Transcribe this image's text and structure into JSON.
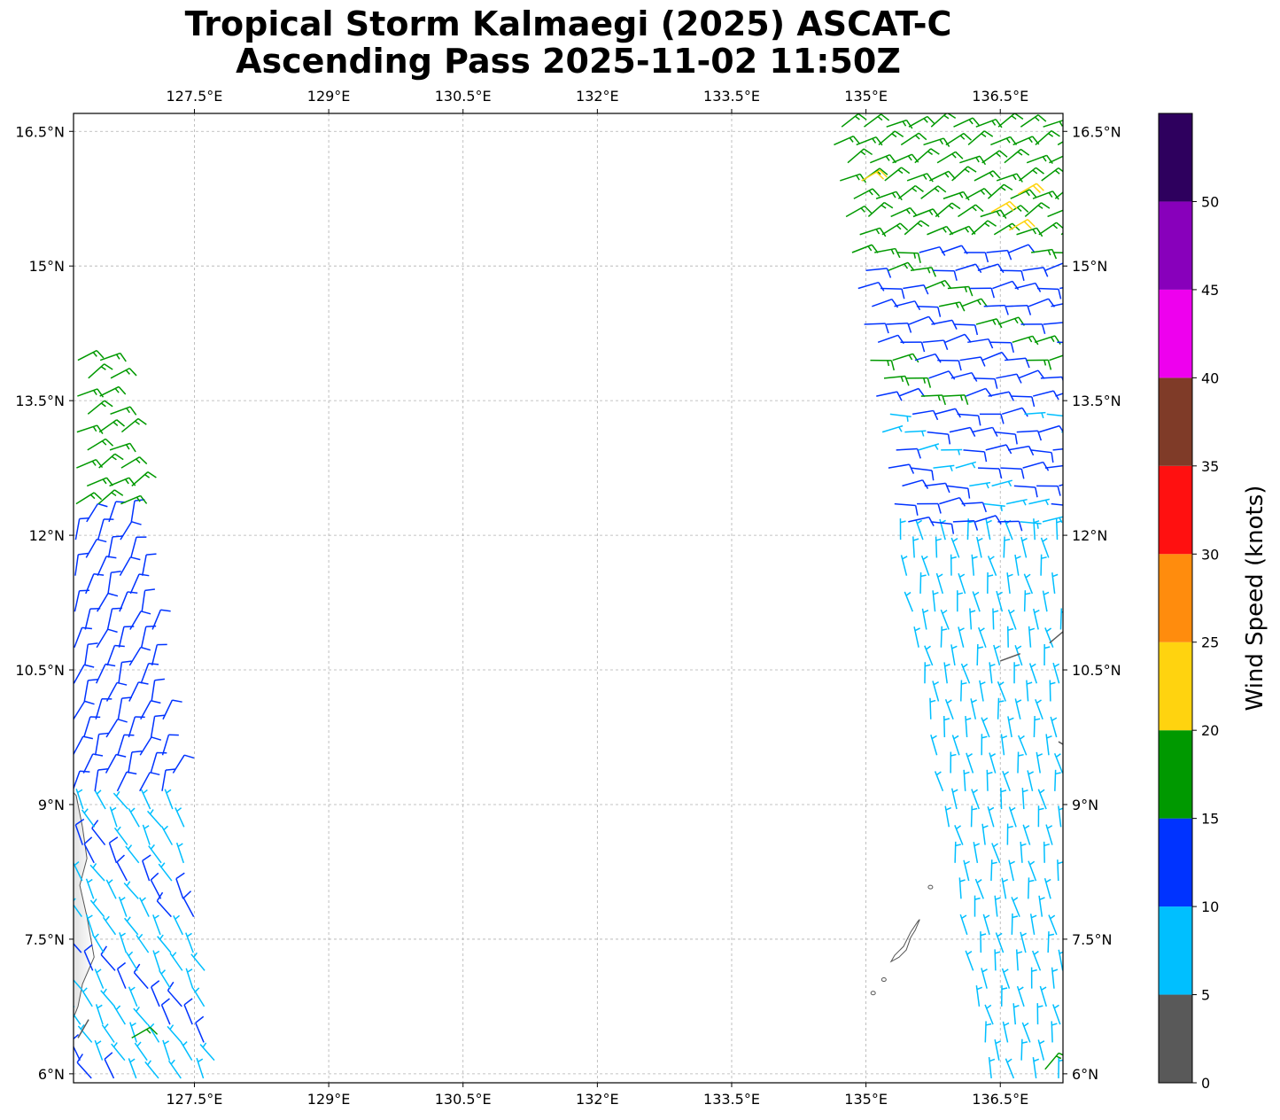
{
  "title": {
    "line1": "Tropical Storm Kalmaegi (2025) ASCAT-C",
    "line2": "Ascending Pass 2025-11-02 11:50Z"
  },
  "map": {
    "lon_range": [
      126.15,
      137.2
    ],
    "lat_range": [
      5.9,
      16.7
    ],
    "lon_ticks": [
      "127.5°E",
      "129°E",
      "130.5°E",
      "132°E",
      "133.5°E",
      "135°E",
      "136.5°E"
    ],
    "lon_tick_values": [
      127.5,
      129,
      130.5,
      132,
      133.5,
      135,
      136.5
    ],
    "lat_ticks": [
      "16.5°N",
      "15°N",
      "13.5°N",
      "12°N",
      "10.5°N",
      "9°N",
      "7.5°N",
      "6°N"
    ],
    "lat_tick_values": [
      16.5,
      15,
      13.5,
      12,
      10.5,
      9,
      7.5,
      6
    ],
    "gridlines": "dashed gray",
    "land_features": [
      "mindanao-coast",
      "palau-islands"
    ]
  },
  "colorbar": {
    "label": "Wind Speed (knots)",
    "tick_labels": [
      "0",
      "5",
      "10",
      "15",
      "20",
      "25",
      "30",
      "35",
      "40",
      "45",
      "50"
    ],
    "tick_values": [
      0,
      5,
      10,
      15,
      20,
      25,
      30,
      35,
      40,
      45,
      50
    ],
    "range": [
      0,
      55
    ],
    "bins": [
      {
        "from": 0,
        "to": 5,
        "color": "#595959"
      },
      {
        "from": 5,
        "to": 10,
        "color": "#00bfff"
      },
      {
        "from": 10,
        "to": 15,
        "color": "#0033ff"
      },
      {
        "from": 15,
        "to": 20,
        "color": "#009900"
      },
      {
        "from": 20,
        "to": 25,
        "color": "#ffd30f"
      },
      {
        "from": 25,
        "to": 30,
        "color": "#ff8c0d"
      },
      {
        "from": 30,
        "to": 35,
        "color": "#ff1010"
      },
      {
        "from": 35,
        "to": 40,
        "color": "#7f3b28"
      },
      {
        "from": 40,
        "to": 45,
        "color": "#ee00ee"
      },
      {
        "from": 45,
        "to": 50,
        "color": "#8800bb"
      },
      {
        "from": 50,
        "to": 55,
        "color": "#2e005e"
      }
    ]
  },
  "wind_barbs": {
    "swaths": [
      {
        "name": "west-swath",
        "lat_range": [
          5.95,
          14.1
        ],
        "lon_west_at_south": 126.1,
        "lon_east_at_south": 127.8,
        "lon_west_at_north": 126.2,
        "lon_east_at_north": 126.6,
        "speed_zones": [
          {
            "lat_from": 12.3,
            "lat_to": 14.1,
            "speed_kt": 17,
            "dir_deg": 60
          },
          {
            "lat_from": 9.0,
            "lat_to": 12.3,
            "speed_kt": 12,
            "dir_deg": 20
          },
          {
            "lat_from": 5.95,
            "lat_to": 9.0,
            "speed_kt": 9,
            "dir_deg": 330
          }
        ]
      },
      {
        "name": "east-swath",
        "lat_range": [
          5.95,
          16.6
        ],
        "lon_west_at_south": 136.4,
        "lon_east_at_south": 137.2,
        "lon_west_at_north": 134.6,
        "lon_east_at_north": 137.2,
        "speed_zones": [
          {
            "lat_from": 15.25,
            "lat_to": 16.6,
            "speed_kt": 17,
            "dir_deg": 60
          },
          {
            "lat_from": 13.5,
            "lat_to": 15.25,
            "speed_kt": 14,
            "dir_deg": 80
          },
          {
            "lat_from": 12.0,
            "lat_to": 13.5,
            "speed_kt": 11,
            "dir_deg": 85
          },
          {
            "lat_from": 5.95,
            "lat_to": 12.0,
            "speed_kt": 7,
            "dir_deg": 350
          }
        ]
      }
    ],
    "highlights": [
      {
        "lat": 15.6,
        "lon": 136.4,
        "speed_kt": 21,
        "dir_deg": 60
      },
      {
        "lat": 15.4,
        "lon": 136.6,
        "speed_kt": 22,
        "dir_deg": 60
      },
      {
        "lat": 15.8,
        "lon": 136.7,
        "speed_kt": 21,
        "dir_deg": 60
      },
      {
        "lat": 15.95,
        "lon": 134.95,
        "speed_kt": 21,
        "dir_deg": 60
      },
      {
        "lat": 10.6,
        "lon": 136.5,
        "speed_kt": 3,
        "dir_deg": 70
      },
      {
        "lat": 10.8,
        "lon": 137.05,
        "speed_kt": 3,
        "dir_deg": 50
      },
      {
        "lat": 9.7,
        "lon": 137.15,
        "speed_kt": 3,
        "dir_deg": 120
      },
      {
        "lat": 6.4,
        "lon": 126.2,
        "speed_kt": 3,
        "dir_deg": 30
      },
      {
        "lat": 6.4,
        "lon": 126.8,
        "speed_kt": 16,
        "dir_deg": 60
      },
      {
        "lat": 6.05,
        "lon": 137.0,
        "speed_kt": 16,
        "dir_deg": 40
      }
    ]
  }
}
